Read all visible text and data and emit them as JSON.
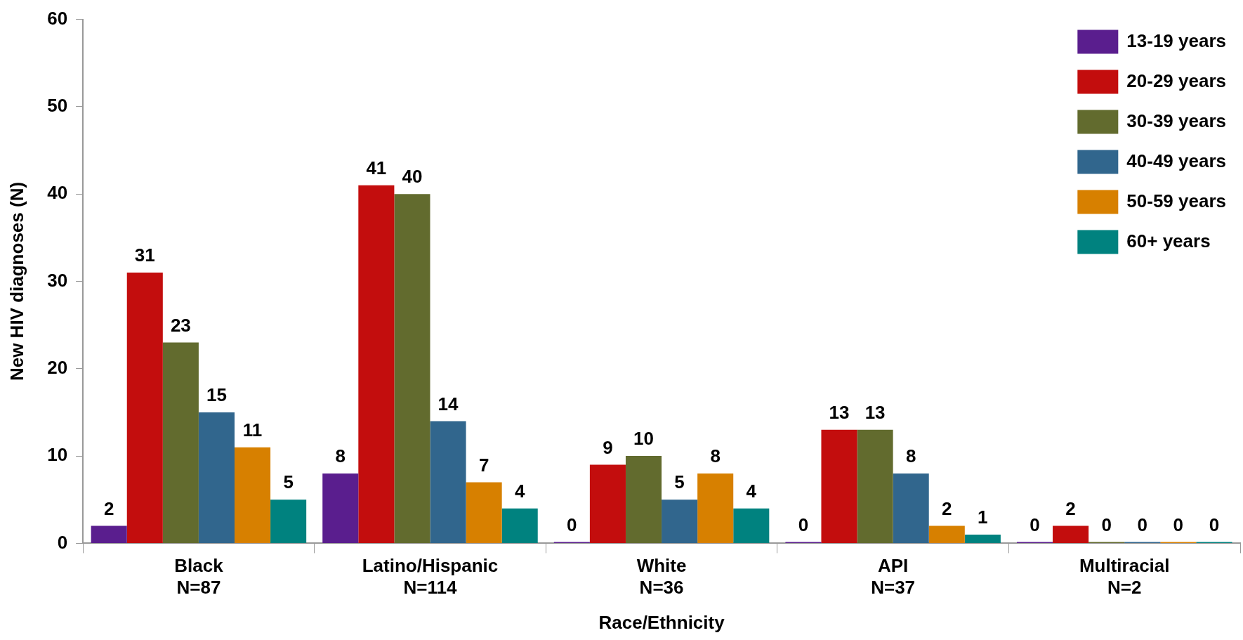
{
  "chart_data": {
    "type": "bar",
    "xlabel": "Race/Ethnicity",
    "ylabel": "New HIV diagnoses (N)",
    "categories": [
      "Black\nN=87",
      "Latino/Hispanic\nN=114",
      "White\nN=36",
      "API\nN=37",
      "Multiracial\nN=2"
    ],
    "series": [
      {
        "name": "13-19 years",
        "color": "#5a1e8e",
        "values": [
          2,
          8,
          0,
          0,
          0
        ]
      },
      {
        "name": "20-29 years",
        "color": "#c30d0d",
        "values": [
          31,
          41,
          9,
          13,
          2
        ]
      },
      {
        "name": "30-39 years",
        "color": "#626b2e",
        "values": [
          23,
          40,
          10,
          13,
          0
        ]
      },
      {
        "name": "40-49 years",
        "color": "#31668d",
        "values": [
          15,
          14,
          5,
          8,
          0
        ]
      },
      {
        "name": "50-59 years",
        "color": "#d78000",
        "values": [
          11,
          7,
          8,
          2,
          0
        ]
      },
      {
        "name": "60+ years",
        "color": "#00827f",
        "values": [
          5,
          4,
          4,
          1,
          0
        ]
      }
    ],
    "ylim": [
      0,
      60
    ],
    "yticks": [
      0,
      10,
      20,
      30,
      40,
      50,
      60
    ],
    "grid": false,
    "legend": "top right",
    "data_labels": true
  }
}
